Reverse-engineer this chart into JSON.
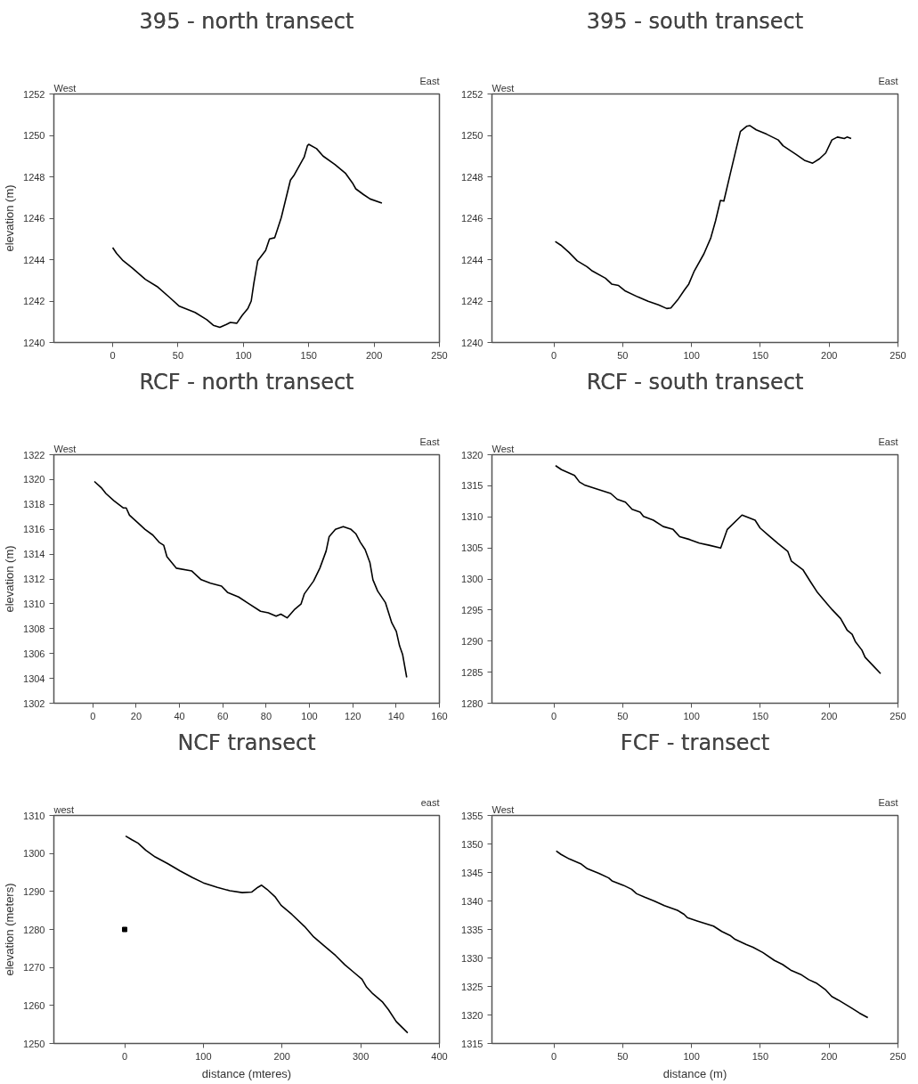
{
  "chart_data": [
    {
      "type": "line",
      "title": "395 - north transect",
      "ylabel": "elevation (m)",
      "xlim": [
        -45,
        250
      ],
      "ylim": [
        1240,
        1252
      ],
      "xticks": [
        0,
        50,
        100,
        150,
        200,
        250
      ],
      "yticks": [
        1240,
        1242,
        1244,
        1246,
        1248,
        1250,
        1252
      ],
      "annotations": [
        "West",
        "East"
      ],
      "series": [
        {
          "color": "#000000",
          "x": [
            0,
            3,
            8,
            15,
            25,
            34,
            44,
            51,
            63,
            72,
            77,
            82,
            87,
            90,
            95,
            99,
            103.5,
            106,
            108,
            111,
            117,
            120,
            124,
            129,
            136,
            139,
            146.5,
            149,
            150,
            156,
            161,
            170,
            178,
            183.5,
            186,
            192,
            197,
            206
          ],
          "values": [
            1244.58,
            1244.3,
            1243.95,
            1243.6,
            1243.05,
            1242.7,
            1242.15,
            1241.75,
            1241.45,
            1241.1,
            1240.83,
            1240.73,
            1240.87,
            1240.97,
            1240.93,
            1241.3,
            1241.65,
            1242.0,
            1242.85,
            1243.95,
            1244.44,
            1245.0,
            1245.06,
            1246.03,
            1247.84,
            1248.1,
            1248.95,
            1249.5,
            1249.57,
            1249.36,
            1249.0,
            1248.6,
            1248.18,
            1247.7,
            1247.42,
            1247.14,
            1246.93,
            1246.73
          ]
        }
      ]
    },
    {
      "type": "line",
      "title": "395 - south transect",
      "xlim": [
        -45,
        250
      ],
      "ylim": [
        1240,
        1252
      ],
      "xticks": [
        0,
        50,
        100,
        150,
        200,
        250
      ],
      "yticks": [
        1240,
        1242,
        1244,
        1246,
        1248,
        1250,
        1252
      ],
      "annotations": [
        "West",
        "East"
      ],
      "series": [
        {
          "color": "#000000",
          "x": [
            1,
            5,
            11,
            17,
            24,
            28,
            37.5,
            42,
            47,
            52,
            61,
            68.5,
            76,
            82,
            85,
            90,
            95,
            98,
            102,
            109,
            114,
            117.5,
            121,
            123.5,
            128,
            132,
            135.5,
            140,
            142.5,
            147,
            154.5,
            163,
            166.5,
            176,
            182,
            188,
            193,
            197.5,
            202,
            206,
            211,
            213,
            216
          ],
          "values": [
            1244.88,
            1244.7,
            1244.35,
            1243.94,
            1243.66,
            1243.45,
            1243.1,
            1242.82,
            1242.75,
            1242.48,
            1242.2,
            1241.99,
            1241.82,
            1241.64,
            1241.67,
            1242.06,
            1242.55,
            1242.82,
            1243.45,
            1244.28,
            1245.05,
            1245.88,
            1246.86,
            1246.83,
            1248.1,
            1249.22,
            1250.19,
            1250.44,
            1250.47,
            1250.27,
            1250.06,
            1249.78,
            1249.5,
            1249.08,
            1248.8,
            1248.66,
            1248.87,
            1249.15,
            1249.78,
            1249.92,
            1249.85,
            1249.92,
            1249.85
          ]
        }
      ]
    },
    {
      "type": "line",
      "title": "RCF - north transect",
      "ylabel": "elevation (m)",
      "xlim": [
        -18,
        160
      ],
      "ylim": [
        1302,
        1322
      ],
      "xticks": [
        0,
        20,
        40,
        60,
        80,
        100,
        120,
        140,
        160
      ],
      "yticks": [
        1302,
        1304,
        1306,
        1308,
        1310,
        1312,
        1314,
        1316,
        1318,
        1320,
        1322
      ],
      "annotations": [
        "West",
        "East"
      ],
      "series": [
        {
          "color": "#000000",
          "x": [
            0.7,
            3.9,
            6,
            9.7,
            14,
            15.4,
            16.9,
            21.2,
            24.1,
            27.7,
            30.6,
            32.7,
            34.2,
            38.5,
            45.7,
            50,
            54.3,
            59.4,
            62.3,
            67.3,
            71.6,
            77.4,
            81,
            84.6,
            86.8,
            89.7,
            93.3,
            96.1,
            97.6,
            101.9,
            104.8,
            107.7,
            109.1,
            112,
            115.6,
            119.2,
            121.4,
            123.5,
            125.7,
            127.9,
            129.3,
            131.5,
            135.1,
            138,
            140.1,
            141.6,
            143,
            144.9
          ],
          "values": [
            1319.85,
            1319.34,
            1318.88,
            1318.3,
            1317.72,
            1317.72,
            1317.14,
            1316.45,
            1315.99,
            1315.53,
            1314.95,
            1314.72,
            1313.79,
            1312.87,
            1312.64,
            1311.94,
            1311.66,
            1311.43,
            1310.9,
            1310.55,
            1310.05,
            1309.4,
            1309.28,
            1309.0,
            1309.17,
            1308.87,
            1309.58,
            1309.98,
            1310.79,
            1311.83,
            1312.87,
            1314.25,
            1315.41,
            1315.99,
            1316.22,
            1315.99,
            1315.64,
            1314.95,
            1314.37,
            1313.33,
            1311.94,
            1311.02,
            1310.09,
            1308.47,
            1307.78,
            1306.62,
            1305.93,
            1304.08
          ]
        }
      ]
    },
    {
      "type": "line",
      "title": "RCF - south transect",
      "xlim": [
        -45,
        250
      ],
      "ylim": [
        1280,
        1320
      ],
      "xticks": [
        0,
        50,
        100,
        150,
        200,
        250
      ],
      "yticks": [
        1280,
        1285,
        1290,
        1295,
        1300,
        1305,
        1310,
        1315,
        1320
      ],
      "annotations": [
        "West",
        "East"
      ],
      "series": [
        {
          "color": "#000000",
          "x": [
            1.2,
            5.5,
            15,
            18.6,
            22.2,
            31.7,
            41.3,
            46,
            52,
            56.8,
            62.7,
            65.1,
            72.3,
            79.4,
            86.6,
            91.4,
            98.5,
            105.7,
            112.8,
            121.2,
            126,
            136.7,
            146.2,
            149.8,
            155.8,
            163,
            170,
            172.5,
            180.9,
            186.8,
            191.6,
            198.7,
            202.3,
            208.3,
            213,
            216.7,
            219,
            223.8,
            226.1,
            232.1,
            237.4
          ],
          "values": [
            1318.24,
            1317.6,
            1316.67,
            1315.61,
            1315.14,
            1314.45,
            1313.76,
            1312.83,
            1312.37,
            1311.21,
            1310.75,
            1310.06,
            1309.46,
            1308.44,
            1307.98,
            1306.82,
            1306.36,
            1305.76,
            1305.43,
            1304.97,
            1307.98,
            1310.29,
            1309.46,
            1308.21,
            1307.05,
            1305.67,
            1304.42,
            1302.89,
            1301.5,
            1299.42,
            1297.8,
            1295.95,
            1295.03,
            1293.64,
            1291.79,
            1291.1,
            1289.94,
            1288.55,
            1287.4,
            1286.01,
            1284.76
          ]
        }
      ]
    },
    {
      "type": "line",
      "title": "NCF transect",
      "xlabel": "distance (mteres)",
      "ylabel": "elevation (meters)",
      "xlim": [
        -90,
        400
      ],
      "ylim": [
        1250,
        1310
      ],
      "xticks": [
        0,
        100,
        200,
        300,
        400
      ],
      "yticks": [
        1250,
        1260,
        1270,
        1280,
        1290,
        1300,
        1310
      ],
      "annotations": [
        "west",
        "east"
      ],
      "series": [
        {
          "color": "#000000",
          "x": [
            1.2,
            9.1,
            17,
            26.9,
            38.7,
            54.5,
            70.4,
            86.2,
            100,
            117.8,
            133.6,
            149.4,
            161.3,
            169.2,
            174,
            181,
            190.9,
            198.8,
            212.6,
            228.5,
            240.3,
            252.2,
            268,
            279.8,
            291.7,
            301.6,
            307.5,
            315.4,
            327.3,
            335.2,
            345.1,
            359.7
          ],
          "values": [
            1304.58,
            1303.6,
            1302.7,
            1300.82,
            1299.09,
            1297.35,
            1295.4,
            1293.66,
            1292.27,
            1291.09,
            1290.18,
            1289.7,
            1289.84,
            1291.09,
            1291.65,
            1290.54,
            1288.66,
            1286.36,
            1283.93,
            1280.8,
            1278.02,
            1275.93,
            1273.15,
            1270.72,
            1268.63,
            1266.9,
            1264.81,
            1263.07,
            1260.99,
            1258.9,
            1255.77,
            1252.78
          ]
        },
        {
          "type": "scatter",
          "marker": "square",
          "color": "#000000",
          "x": [
            0
          ],
          "values": [
            1280
          ]
        }
      ]
    },
    {
      "type": "line",
      "title": "FCF - transect",
      "xlabel": "distance (m)",
      "xlim": [
        -45,
        250
      ],
      "ylim": [
        1315,
        1355
      ],
      "xticks": [
        0,
        50,
        100,
        150,
        200,
        250
      ],
      "yticks": [
        1315,
        1320,
        1325,
        1330,
        1335,
        1340,
        1345,
        1350,
        1355
      ],
      "annotations": [
        "West",
        "East"
      ],
      "series": [
        {
          "color": "#000000",
          "x": [
            1.7,
            5.2,
            11.2,
            19.5,
            24.3,
            32.7,
            39.8,
            42.2,
            50.5,
            56.5,
            60.1,
            66,
            73.2,
            80.3,
            89.8,
            94.6,
            97,
            104.1,
            116,
            122,
            128,
            131.6,
            139.9,
            144.7,
            151.8,
            160.2,
            166.1,
            172.1,
            179.3,
            185.2,
            191.1,
            197.1,
            201.9,
            206.6,
            216.2,
            222.1,
            228.1
          ],
          "values": [
            1348.76,
            1348.16,
            1347.37,
            1346.54,
            1345.66,
            1344.83,
            1344.04,
            1343.53,
            1342.75,
            1342.05,
            1341.27,
            1340.66,
            1339.97,
            1339.18,
            1338.35,
            1337.66,
            1337.06,
            1336.5,
            1335.58,
            1334.65,
            1333.96,
            1333.27,
            1332.34,
            1331.88,
            1330.95,
            1329.57,
            1328.87,
            1327.86,
            1327.12,
            1326.19,
            1325.54,
            1324.48,
            1323.23,
            1322.63,
            1321.24,
            1320.32,
            1319.53
          ]
        }
      ]
    }
  ]
}
